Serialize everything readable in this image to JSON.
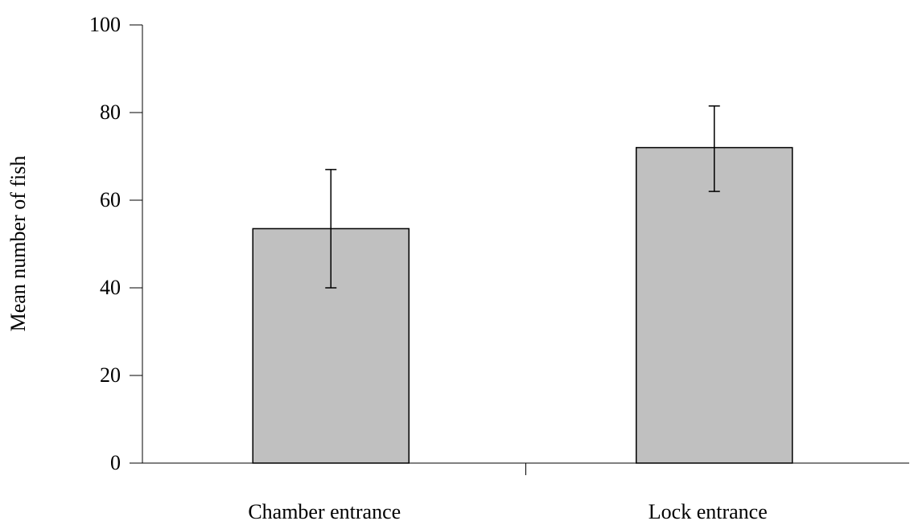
{
  "chart_data": {
    "type": "bar",
    "title": "",
    "xlabel": "",
    "ylabel": "Mean number of fish",
    "categories": [
      "Chamber entrance",
      "Lock entrance"
    ],
    "values": [
      53.5,
      72
    ],
    "error_high": [
      67,
      81.5
    ],
    "error_low": [
      40,
      62
    ],
    "ylim": [
      0,
      100
    ],
    "yticks": [
      0,
      20,
      40,
      60,
      80,
      100
    ],
    "ytick_labels": [
      "0",
      "20",
      "40",
      "60",
      "80",
      "100"
    ],
    "grid": false,
    "legend": "none",
    "bar_color": "#c0c0c0",
    "edge_color": "#000000"
  }
}
